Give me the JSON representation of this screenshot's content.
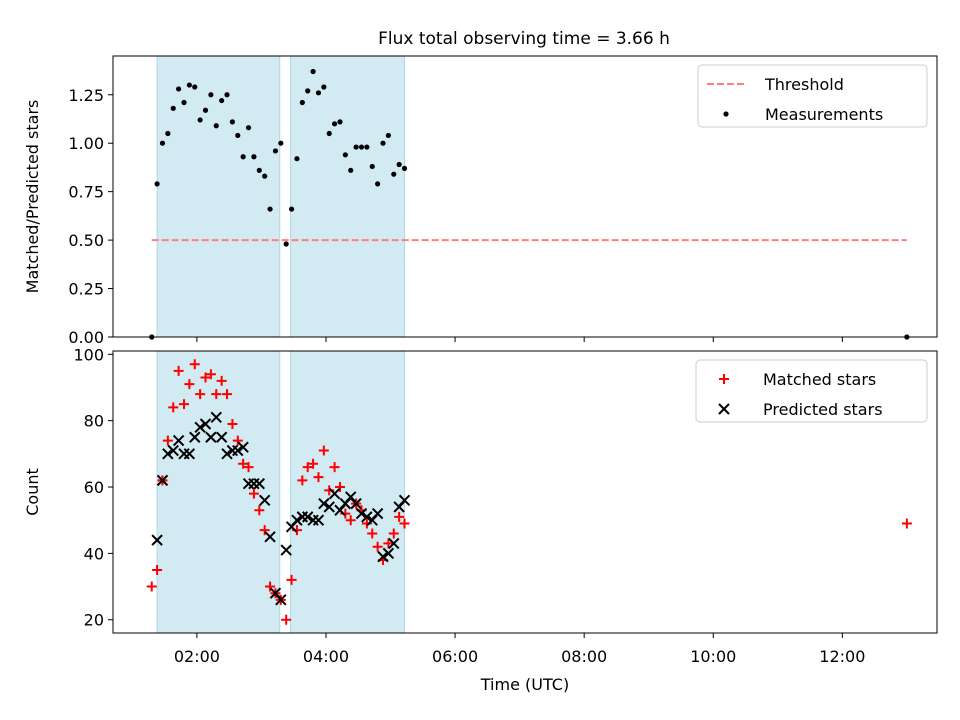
{
  "figure": {
    "title": "Flux total observing time = 3.66 h"
  },
  "chart_data": [
    {
      "type": "scatter",
      "title": "Flux total observing time = 3.66 h",
      "xlabel": "",
      "ylabel": "Matched/Predicted stars",
      "xlim": [
        "00:42",
        "13:28"
      ],
      "ylim": [
        0,
        1.45
      ],
      "yticks": [
        "0.00",
        "0.25",
        "0.50",
        "0.75",
        "1.00",
        "1.25"
      ],
      "x_tick_labels_shown": false,
      "legend": {
        "position": "top-right",
        "entries": [
          "Threshold",
          "Measurements"
        ]
      },
      "shaded_spans": [
        [
          "01:23",
          "03:17"
        ],
        [
          "03:27",
          "05:13"
        ]
      ],
      "shade_color": "#add8e6",
      "threshold": {
        "name": "Threshold",
        "y": 0.5,
        "x_range": [
          "01:18",
          "13:00"
        ],
        "color": "#ff7f7f",
        "style": "dashed"
      },
      "series": [
        {
          "name": "Measurements",
          "color": "#000000",
          "points": [
            [
              "01:18",
              0.0
            ],
            [
              "01:23",
              0.79
            ],
            [
              "01:28",
              1.0
            ],
            [
              "01:33",
              1.05
            ],
            [
              "01:38",
              1.18
            ],
            [
              "01:43",
              1.28
            ],
            [
              "01:48",
              1.21
            ],
            [
              "01:53",
              1.3
            ],
            [
              "01:58",
              1.29
            ],
            [
              "02:03",
              1.12
            ],
            [
              "02:08",
              1.17
            ],
            [
              "02:13",
              1.25
            ],
            [
              "02:18",
              1.09
            ],
            [
              "02:23",
              1.22
            ],
            [
              "02:28",
              1.25
            ],
            [
              "02:33",
              1.11
            ],
            [
              "02:38",
              1.04
            ],
            [
              "02:43",
              0.93
            ],
            [
              "02:48",
              1.08
            ],
            [
              "02:53",
              0.93
            ],
            [
              "02:58",
              0.86
            ],
            [
              "03:03",
              0.83
            ],
            [
              "03:08",
              0.66
            ],
            [
              "03:13",
              0.96
            ],
            [
              "03:18",
              1.0
            ],
            [
              "03:23",
              0.48
            ],
            [
              "03:28",
              0.66
            ],
            [
              "03:33",
              0.92
            ],
            [
              "03:38",
              1.21
            ],
            [
              "03:43",
              1.27
            ],
            [
              "03:48",
              1.37
            ],
            [
              "03:53",
              1.26
            ],
            [
              "03:58",
              1.29
            ],
            [
              "04:03",
              1.05
            ],
            [
              "04:08",
              1.1
            ],
            [
              "04:13",
              1.11
            ],
            [
              "04:18",
              0.94
            ],
            [
              "04:23",
              0.86
            ],
            [
              "04:28",
              0.98
            ],
            [
              "04:33",
              0.98
            ],
            [
              "04:38",
              0.98
            ],
            [
              "04:43",
              0.88
            ],
            [
              "04:48",
              0.79
            ],
            [
              "04:53",
              1.0
            ],
            [
              "04:58",
              1.04
            ],
            [
              "05:03",
              0.84
            ],
            [
              "05:08",
              0.89
            ],
            [
              "05:13",
              0.87
            ],
            [
              "13:00",
              0.0
            ]
          ]
        }
      ]
    },
    {
      "type": "scatter",
      "title": "",
      "xlabel": "Time (UTC)",
      "ylabel": "Count",
      "xlim": [
        "00:42",
        "13:28"
      ],
      "ylim": [
        16,
        101
      ],
      "xticks": [
        "02:00",
        "04:00",
        "06:00",
        "08:00",
        "10:00",
        "12:00"
      ],
      "yticks": [
        "20",
        "40",
        "60",
        "80",
        "100"
      ],
      "legend": {
        "position": "top-right",
        "entries": [
          "Matched stars",
          "Predicted stars"
        ]
      },
      "shaded_spans": [
        [
          "01:23",
          "03:17"
        ],
        [
          "03:27",
          "05:13"
        ]
      ],
      "shade_color": "#add8e6",
      "series": [
        {
          "name": "Matched stars",
          "marker": "plus",
          "color": "#ff0000",
          "points": [
            [
              "01:18",
              30
            ],
            [
              "01:23",
              35
            ],
            [
              "01:28",
              62
            ],
            [
              "01:33",
              74
            ],
            [
              "01:38",
              84
            ],
            [
              "01:43",
              95
            ],
            [
              "01:48",
              85
            ],
            [
              "01:53",
              91
            ],
            [
              "01:58",
              97
            ],
            [
              "02:03",
              88
            ],
            [
              "02:08",
              93
            ],
            [
              "02:13",
              94
            ],
            [
              "02:18",
              88
            ],
            [
              "02:23",
              92
            ],
            [
              "02:28",
              88
            ],
            [
              "02:33",
              79
            ],
            [
              "02:38",
              74
            ],
            [
              "02:43",
              67
            ],
            [
              "02:48",
              66
            ],
            [
              "02:53",
              58
            ],
            [
              "02:58",
              53
            ],
            [
              "03:03",
              47
            ],
            [
              "03:08",
              30
            ],
            [
              "03:13",
              28
            ],
            [
              "03:18",
              26
            ],
            [
              "03:23",
              20
            ],
            [
              "03:28",
              32
            ],
            [
              "03:33",
              47
            ],
            [
              "03:38",
              62
            ],
            [
              "03:43",
              66
            ],
            [
              "03:48",
              67
            ],
            [
              "03:53",
              63
            ],
            [
              "03:58",
              71
            ],
            [
              "04:03",
              59
            ],
            [
              "04:08",
              66
            ],
            [
              "04:13",
              60
            ],
            [
              "04:18",
              52
            ],
            [
              "04:23",
              50
            ],
            [
              "04:28",
              55
            ],
            [
              "04:33",
              53
            ],
            [
              "04:38",
              49
            ],
            [
              "04:43",
              46
            ],
            [
              "04:48",
              42
            ],
            [
              "04:53",
              38
            ],
            [
              "04:58",
              43
            ],
            [
              "05:03",
              46
            ],
            [
              "05:08",
              51
            ],
            [
              "05:13",
              49
            ],
            [
              "13:00",
              49
            ]
          ]
        },
        {
          "name": "Predicted stars",
          "marker": "x",
          "color": "#000000",
          "points": [
            [
              "01:23",
              44
            ],
            [
              "01:28",
              62
            ],
            [
              "01:33",
              70
            ],
            [
              "01:38",
              71
            ],
            [
              "01:43",
              74
            ],
            [
              "01:48",
              70
            ],
            [
              "01:53",
              70
            ],
            [
              "01:58",
              75
            ],
            [
              "02:03",
              78
            ],
            [
              "02:08",
              79
            ],
            [
              "02:13",
              75
            ],
            [
              "02:18",
              81
            ],
            [
              "02:23",
              75
            ],
            [
              "02:28",
              70
            ],
            [
              "02:33",
              71
            ],
            [
              "02:38",
              71
            ],
            [
              "02:43",
              72
            ],
            [
              "02:48",
              61
            ],
            [
              "02:53",
              61
            ],
            [
              "02:58",
              61
            ],
            [
              "03:03",
              56
            ],
            [
              "03:08",
              45
            ],
            [
              "03:13",
              28
            ],
            [
              "03:18",
              26
            ],
            [
              "03:23",
              41
            ],
            [
              "03:28",
              48
            ],
            [
              "03:33",
              50
            ],
            [
              "03:38",
              51
            ],
            [
              "03:43",
              51
            ],
            [
              "03:48",
              50
            ],
            [
              "03:53",
              50
            ],
            [
              "03:58",
              55
            ],
            [
              "04:03",
              54
            ],
            [
              "04:08",
              58
            ],
            [
              "04:13",
              53
            ],
            [
              "04:18",
              55
            ],
            [
              "04:23",
              57
            ],
            [
              "04:28",
              55
            ],
            [
              "04:33",
              52
            ],
            [
              "04:38",
              51
            ],
            [
              "04:43",
              50
            ],
            [
              "04:48",
              52
            ],
            [
              "04:53",
              39
            ],
            [
              "04:58",
              40
            ],
            [
              "05:03",
              43
            ],
            [
              "05:08",
              54
            ],
            [
              "05:13",
              56
            ]
          ]
        }
      ]
    }
  ]
}
